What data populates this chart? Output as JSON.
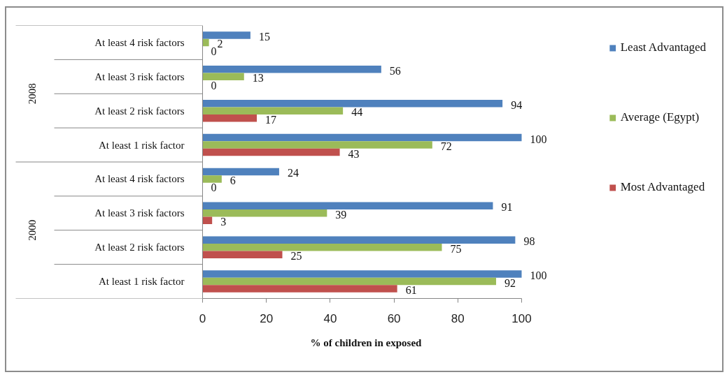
{
  "chart_data": {
    "type": "bar",
    "orientation": "horizontal",
    "categories": [
      "At least 4 risk factors",
      "At least 3 risk factors",
      "At least 2 risk factors",
      "At least 1 risk factor",
      "At least 4 risk factors",
      "At least 3 risk factors",
      "At least 2 risk factors",
      "At least 1 risk factor"
    ],
    "series": [
      {
        "name": "Least Advantaged",
        "color": "#4f81bd",
        "values": [
          15,
          56,
          94,
          100,
          24,
          91,
          98,
          100
        ]
      },
      {
        "name": "Average (Egypt)",
        "color": "#9bbb59",
        "values": [
          2,
          13,
          44,
          72,
          6,
          39,
          75,
          92
        ]
      },
      {
        "name": "Most Advantaged",
        "color": "#c0504d",
        "values": [
          0,
          0,
          17,
          43,
          0,
          3,
          25,
          61
        ]
      }
    ],
    "xlim": [
      0,
      100
    ],
    "xticks": [
      0,
      20,
      40,
      60,
      80,
      100
    ],
    "xlabel": "% of children in exposed",
    "annotations": [
      "2008",
      "2000"
    ],
    "data_labels": true,
    "legend": "right"
  }
}
